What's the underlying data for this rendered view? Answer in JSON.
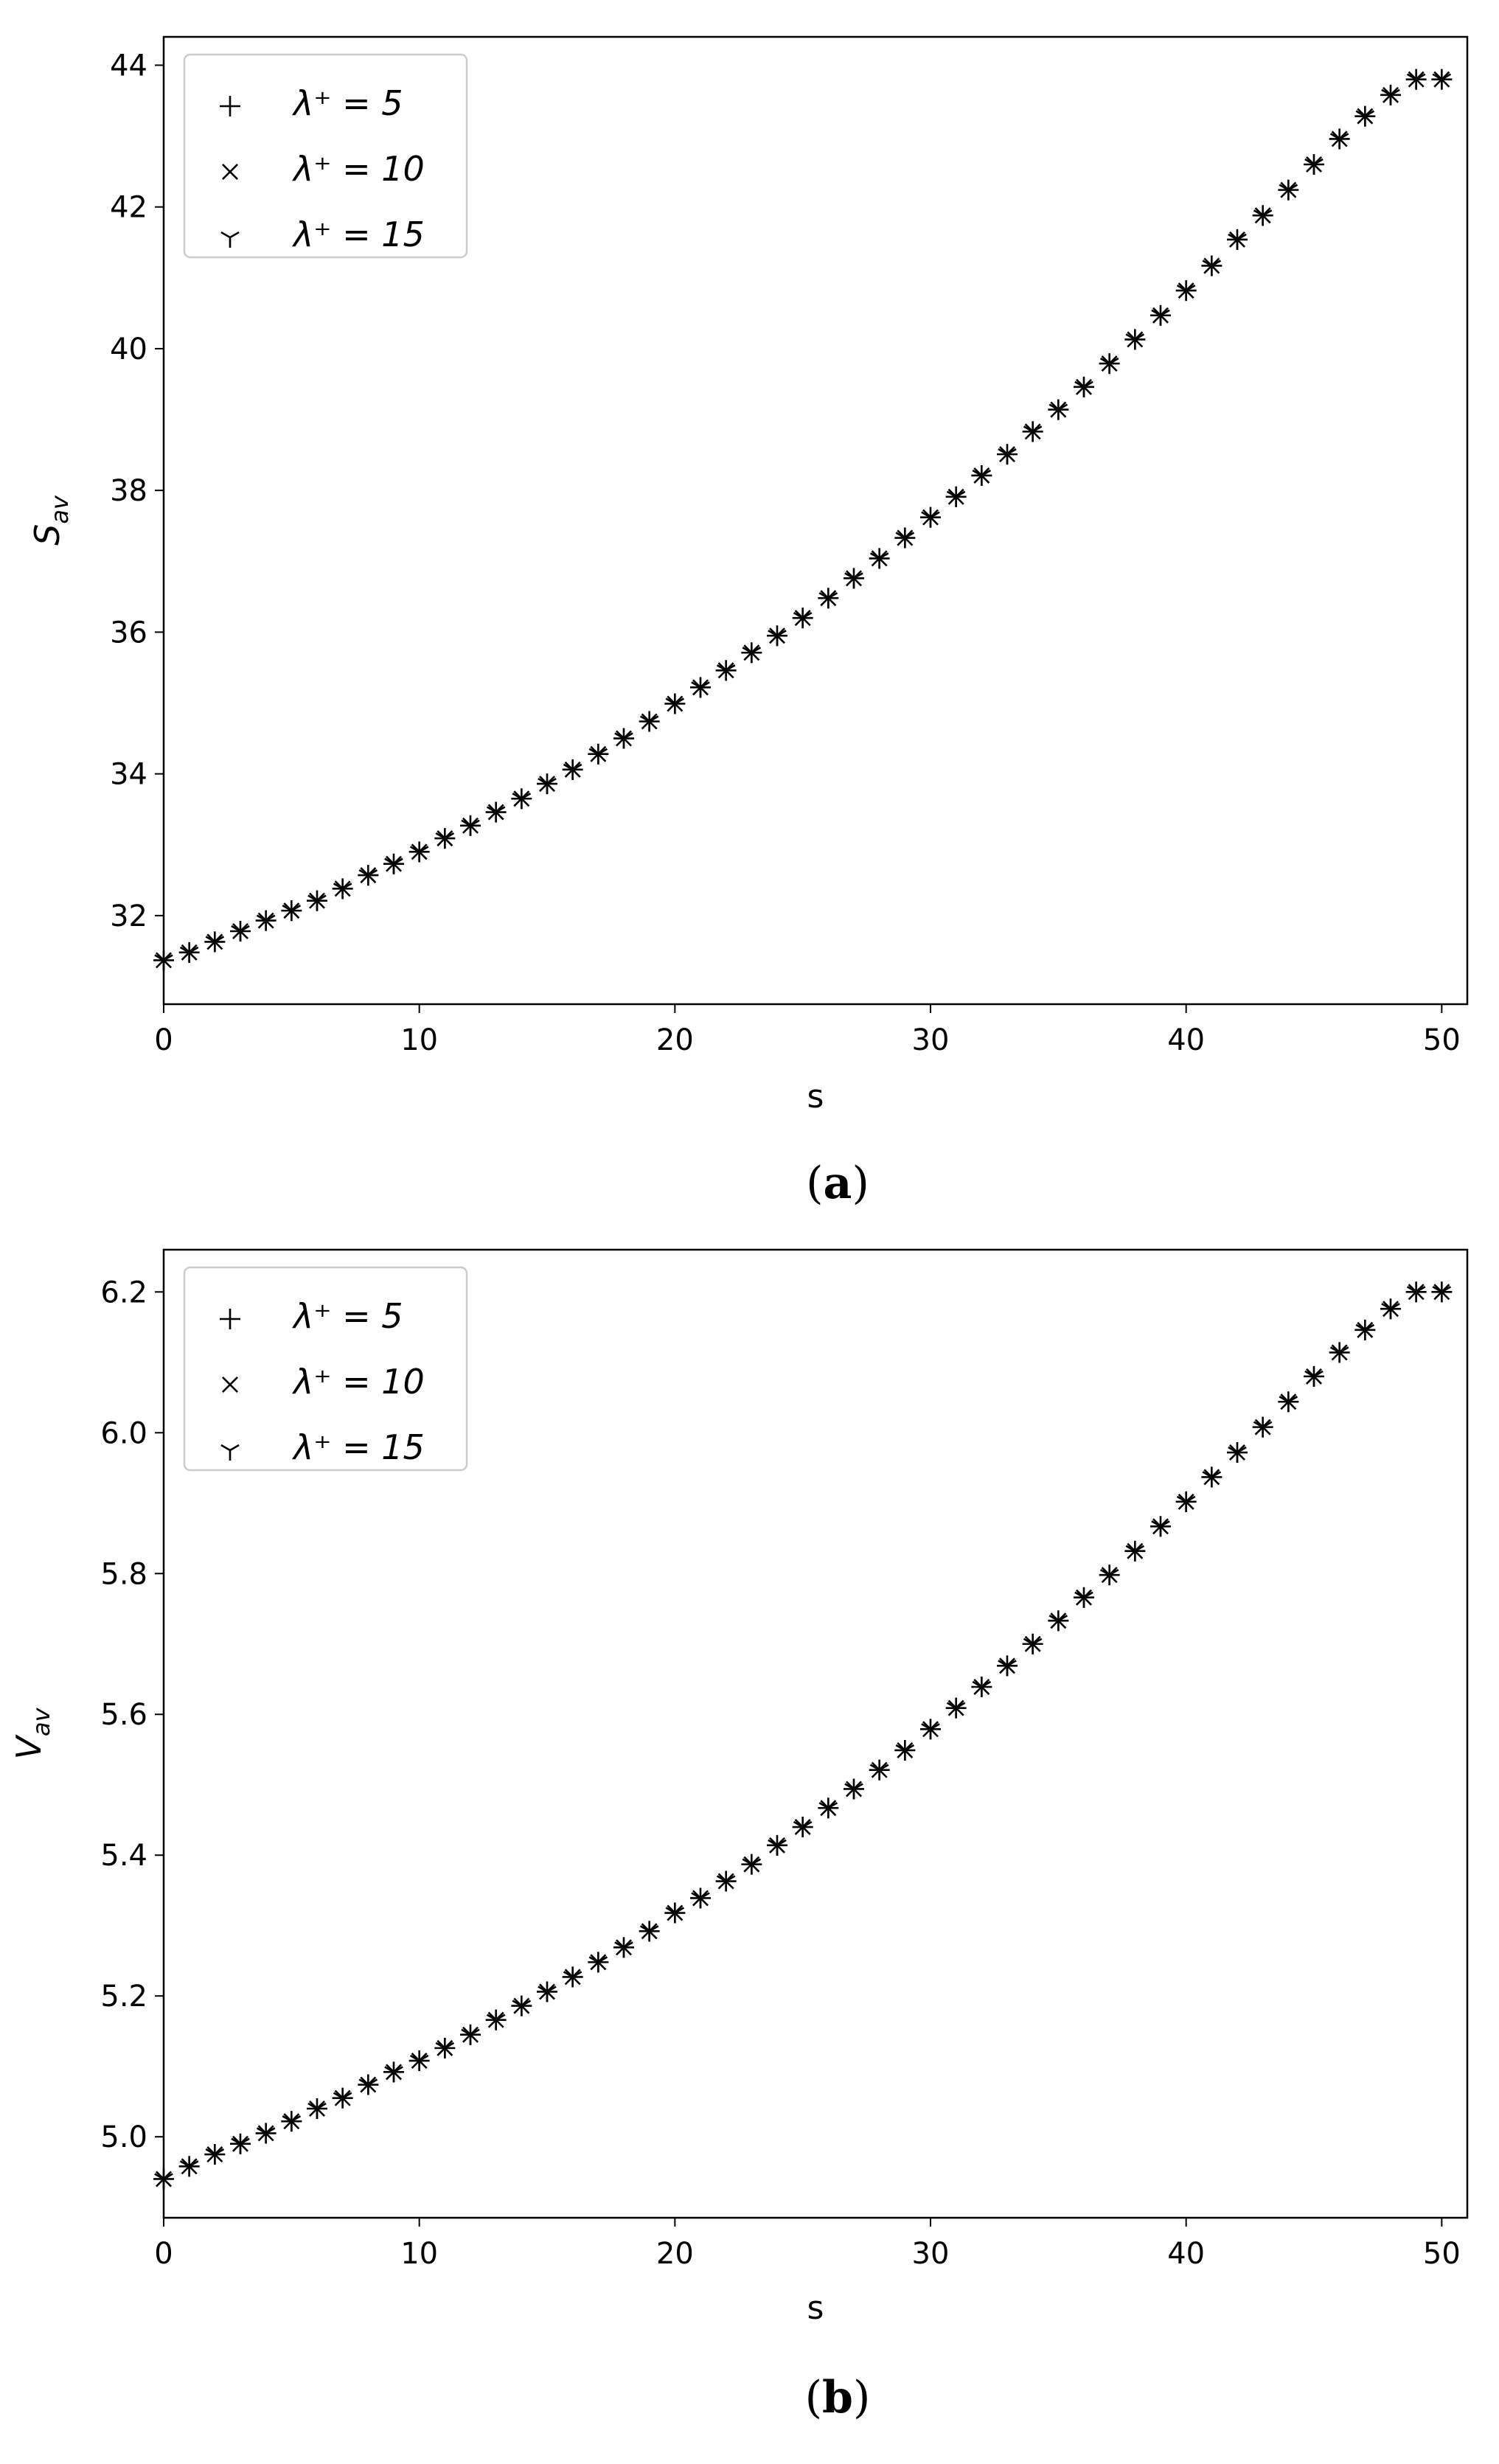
{
  "chart_data": [
    {
      "type": "scatter",
      "ylabel_main": "S",
      "ylabel_sub": "av",
      "xlabel": "s",
      "caption": "a",
      "xlim": [
        0,
        51
      ],
      "ylim": [
        30.75,
        44.4
      ],
      "xticks": [
        0,
        10,
        20,
        30,
        40,
        50
      ],
      "yticks": [
        32,
        34,
        36,
        38,
        40,
        42,
        44
      ],
      "legend_position": "top-left",
      "x": [
        0,
        1,
        2,
        3,
        4,
        5,
        6,
        7,
        8,
        9,
        10,
        11,
        12,
        13,
        14,
        15,
        16,
        17,
        18,
        19,
        20,
        21,
        22,
        23,
        24,
        25,
        26,
        27,
        28,
        29,
        30,
        31,
        32,
        33,
        34,
        35,
        36,
        37,
        38,
        39,
        40,
        41,
        42,
        43,
        44,
        45,
        46,
        47,
        48,
        49,
        50
      ],
      "series": [
        {
          "name": "λ⁺ = 5",
          "marker": "plus",
          "values": [
            31.37,
            31.48,
            31.63,
            31.78,
            31.93,
            32.07,
            32.21,
            32.38,
            32.57,
            32.73,
            32.9,
            33.09,
            33.27,
            33.46,
            33.65,
            33.86,
            34.06,
            34.28,
            34.5,
            34.74,
            34.99,
            35.22,
            35.46,
            35.71,
            35.95,
            36.2,
            36.48,
            36.76,
            37.04,
            37.33,
            37.62,
            37.91,
            38.21,
            38.51,
            38.83,
            39.14,
            39.46,
            39.79,
            40.13,
            40.47,
            40.82,
            41.17,
            41.54,
            41.88,
            42.24,
            42.6,
            42.96,
            43.28,
            43.58,
            43.8,
            43.8
          ]
        },
        {
          "name": "λ⁺ = 10",
          "marker": "x",
          "values": [
            31.37,
            31.48,
            31.63,
            31.78,
            31.93,
            32.07,
            32.21,
            32.38,
            32.57,
            32.73,
            32.9,
            33.09,
            33.27,
            33.46,
            33.65,
            33.86,
            34.06,
            34.28,
            34.5,
            34.74,
            34.99,
            35.22,
            35.46,
            35.71,
            35.95,
            36.2,
            36.48,
            36.76,
            37.04,
            37.33,
            37.62,
            37.91,
            38.21,
            38.51,
            38.83,
            39.14,
            39.46,
            39.79,
            40.13,
            40.47,
            40.82,
            41.17,
            41.54,
            41.88,
            42.24,
            42.6,
            42.96,
            43.28,
            43.58,
            43.8,
            43.8
          ]
        },
        {
          "name": "λ⁺ = 15",
          "marker": "tri_down",
          "values": [
            31.37,
            31.48,
            31.63,
            31.78,
            31.93,
            32.07,
            32.21,
            32.38,
            32.57,
            32.73,
            32.9,
            33.09,
            33.27,
            33.46,
            33.65,
            33.86,
            34.06,
            34.28,
            34.5,
            34.74,
            34.99,
            35.22,
            35.46,
            35.71,
            35.95,
            36.2,
            36.48,
            36.76,
            37.04,
            37.33,
            37.62,
            37.91,
            38.21,
            38.51,
            38.83,
            39.14,
            39.46,
            39.79,
            40.13,
            40.47,
            40.82,
            41.17,
            41.54,
            41.88,
            42.24,
            42.6,
            42.96,
            43.28,
            43.58,
            43.8,
            43.8
          ]
        }
      ]
    },
    {
      "type": "scatter",
      "ylabel_main": "V",
      "ylabel_sub": "av",
      "xlabel": "s",
      "caption": "b",
      "xlim": [
        0,
        51
      ],
      "ylim": [
        4.885,
        6.26
      ],
      "xticks": [
        0,
        10,
        20,
        30,
        40,
        50
      ],
      "yticks": [
        "5.0",
        "5.2",
        "5.4",
        "5.6",
        "5.8",
        "6.0",
        "6.2"
      ],
      "legend_position": "top-left",
      "x": [
        0,
        1,
        2,
        3,
        4,
        5,
        6,
        7,
        8,
        9,
        10,
        11,
        12,
        13,
        14,
        15,
        16,
        17,
        18,
        19,
        20,
        21,
        22,
        23,
        24,
        25,
        26,
        27,
        28,
        29,
        30,
        31,
        32,
        33,
        34,
        35,
        36,
        37,
        38,
        39,
        40,
        41,
        42,
        43,
        44,
        45,
        46,
        47,
        48,
        49,
        50
      ],
      "series": [
        {
          "name": "λ⁺ = 5",
          "marker": "plus",
          "values": [
            4.94,
            4.958,
            4.975,
            4.99,
            5.005,
            5.022,
            5.04,
            5.055,
            5.074,
            5.092,
            5.108,
            5.126,
            5.145,
            5.166,
            5.186,
            5.206,
            5.227,
            5.248,
            5.269,
            5.292,
            5.318,
            5.339,
            5.363,
            5.387,
            5.414,
            5.44,
            5.467,
            5.494,
            5.521,
            5.549,
            5.579,
            5.609,
            5.639,
            5.669,
            5.7,
            5.733,
            5.766,
            5.798,
            5.832,
            5.867,
            5.902,
            5.937,
            5.972,
            6.008,
            6.044,
            6.08,
            6.114,
            6.146,
            6.176,
            6.2,
            6.2
          ]
        },
        {
          "name": "λ⁺ = 10",
          "marker": "x",
          "values": [
            4.94,
            4.958,
            4.975,
            4.99,
            5.005,
            5.022,
            5.04,
            5.055,
            5.074,
            5.092,
            5.108,
            5.126,
            5.145,
            5.166,
            5.186,
            5.206,
            5.227,
            5.248,
            5.269,
            5.292,
            5.318,
            5.339,
            5.363,
            5.387,
            5.414,
            5.44,
            5.467,
            5.494,
            5.521,
            5.549,
            5.579,
            5.609,
            5.639,
            5.669,
            5.7,
            5.733,
            5.766,
            5.798,
            5.832,
            5.867,
            5.902,
            5.937,
            5.972,
            6.008,
            6.044,
            6.08,
            6.114,
            6.146,
            6.176,
            6.2,
            6.2
          ]
        },
        {
          "name": "λ⁺ = 15",
          "marker": "tri_down",
          "values": [
            4.94,
            4.958,
            4.975,
            4.99,
            5.005,
            5.022,
            5.04,
            5.055,
            5.074,
            5.092,
            5.108,
            5.126,
            5.145,
            5.166,
            5.186,
            5.206,
            5.227,
            5.248,
            5.269,
            5.292,
            5.318,
            5.339,
            5.363,
            5.387,
            5.414,
            5.44,
            5.467,
            5.494,
            5.521,
            5.549,
            5.579,
            5.609,
            5.639,
            5.669,
            5.7,
            5.733,
            5.766,
            5.798,
            5.832,
            5.867,
            5.902,
            5.937,
            5.972,
            6.008,
            6.044,
            6.08,
            6.114,
            6.146,
            6.176,
            6.2,
            6.2
          ]
        }
      ]
    }
  ]
}
